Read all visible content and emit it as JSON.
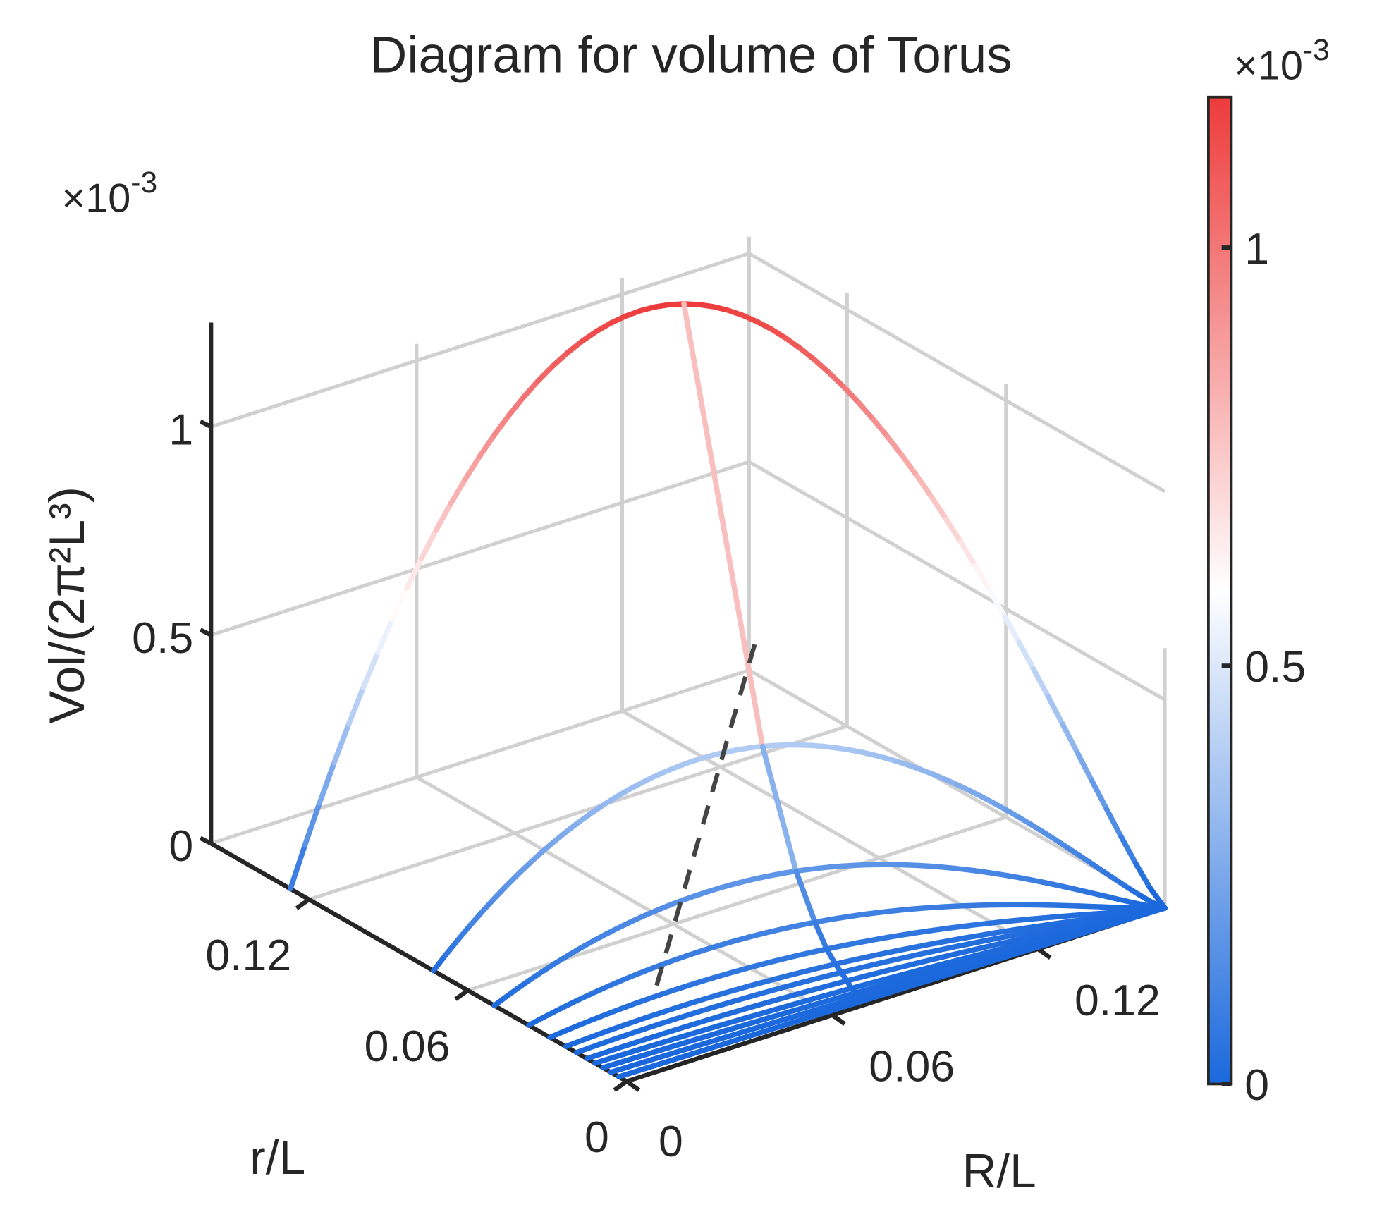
{
  "chart_data": {
    "type": "line",
    "title": "Diagram for volume of Torus",
    "xlabel": "R/L",
    "ylabel": "r/L",
    "zlabel": "Vol/(2π²L³)",
    "zlabel_parts": {
      "main": "Vol/(2",
      "pi": "π",
      "sup1": "2",
      "L": "L",
      "sup2": "3",
      "close": ")"
    },
    "exponent_label": {
      "base": "×10",
      "exp": "-3"
    },
    "xlim": [
      0,
      0.157
    ],
    "ylim": [
      0,
      0.157
    ],
    "zlim": [
      0,
      0.0012
    ],
    "x_ticks": [
      {
        "v": 0,
        "label": "0"
      },
      {
        "v": 0.06,
        "label": "0.06"
      },
      {
        "v": 0.12,
        "label": "0.12"
      }
    ],
    "y_ticks": [
      {
        "v": 0,
        "label": "0"
      },
      {
        "v": 0.06,
        "label": "0.06"
      },
      {
        "v": 0.12,
        "label": "0.12"
      }
    ],
    "z_ticks": [
      {
        "v": 0,
        "label": "0"
      },
      {
        "v": 0.0005,
        "label": "0.5"
      },
      {
        "v": 0.001,
        "label": "1"
      }
    ],
    "colorbar": {
      "ticks": [
        {
          "v": 0,
          "label": "0"
        },
        {
          "v": 0.0005,
          "label": "0.5"
        },
        {
          "v": 0.001,
          "label": "1"
        }
      ],
      "max": 0.00118,
      "colors": {
        "low": "#1a68dc",
        "mid": "#ffffff",
        "high": "#ee3b3b"
      },
      "mid_value": 0.0006
    },
    "grid": true,
    "series": [
      {
        "r0": 0.127,
        "peak": 0.00118
      },
      {
        "r0": 0.073,
        "peak": 0.00039
      },
      {
        "r0": 0.05,
        "peak": 0.00018
      },
      {
        "r0": 0.037,
        "peak": 0.0001
      },
      {
        "r0": 0.029,
        "peak": 6e-05
      },
      {
        "r0": 0.023,
        "peak": 4e-05
      },
      {
        "r0": 0.019,
        "peak": 3e-05
      },
      {
        "r0": 0.015,
        "peak": 2e-05
      },
      {
        "r0": 0.012,
        "peak": 1e-05
      },
      {
        "r0": 0.009,
        "peak": 6e-06
      },
      {
        "r0": 0.006,
        "peak": 3e-06
      },
      {
        "r0": 0.003,
        "peak": 1e-06
      }
    ]
  }
}
